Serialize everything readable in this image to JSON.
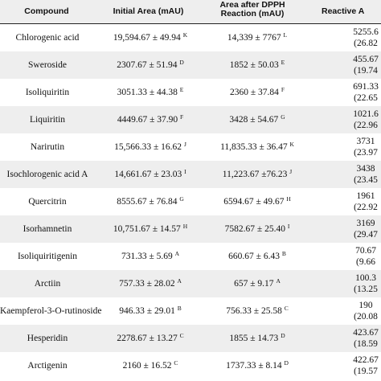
{
  "header": {
    "compound": "Compound",
    "initial": "Initial Area (mAU)",
    "after_line1": "Area after DPPH",
    "after_line2": "Reaction (mAU)",
    "reactive": "Reactive A"
  },
  "rows": [
    {
      "compound": "Chlorogenic acid",
      "initial": "19,594.67 ± 49.94",
      "initial_sup": "K",
      "after": "14,339 ± 7767",
      "after_sup": "L",
      "reactive": "5255.6",
      "reactive_pct": "(26.82"
    },
    {
      "compound": "Sweroside",
      "initial": "2307.67 ± 51.94",
      "initial_sup": "D",
      "after": "1852 ± 50.03",
      "after_sup": "E",
      "reactive": "455.67",
      "reactive_pct": "(19.74"
    },
    {
      "compound": "Isoliquiritin",
      "initial": "3051.33 ± 44.38",
      "initial_sup": "E",
      "after": "2360 ± 37.84",
      "after_sup": "F",
      "reactive": "691.33",
      "reactive_pct": "(22.65"
    },
    {
      "compound": "Liquiritin",
      "initial": "4449.67 ± 37.90",
      "initial_sup": "F",
      "after": "3428 ± 54.67",
      "after_sup": "G",
      "reactive": "1021.6",
      "reactive_pct": "(22.96"
    },
    {
      "compound": "Narirutin",
      "initial": "15,566.33 ± 16.62",
      "initial_sup": "J",
      "after": "11,835.33 ± 36.47",
      "after_sup": "K",
      "reactive": "3731",
      "reactive_pct": "(23.97"
    },
    {
      "compound": "Isochlorogenic acid A",
      "initial": "14,661.67 ± 23.03",
      "initial_sup": "I",
      "after": "11,223.67 ±76.23",
      "after_sup": "J",
      "reactive": "3438",
      "reactive_pct": "(23.45"
    },
    {
      "compound": "Quercitrin",
      "initial": "8555.67 ± 76.84",
      "initial_sup": "G",
      "after": "6594.67 ± 49.67",
      "after_sup": "H",
      "reactive": "1961",
      "reactive_pct": "(22.92"
    },
    {
      "compound": "Isorhamnetin",
      "initial": "10,751.67 ± 14.57",
      "initial_sup": "H",
      "after": "7582.67 ± 25.40",
      "after_sup": "I",
      "reactive": "3169",
      "reactive_pct": "(29.47"
    },
    {
      "compound": "Isoliquiritigenin",
      "initial": "731.33 ± 5.69",
      "initial_sup": "A",
      "after": "660.67 ± 6.43",
      "after_sup": "B",
      "reactive": "70.67",
      "reactive_pct": "(9.66"
    },
    {
      "compound": "Arctiin",
      "initial": "757.33 ± 28.02",
      "initial_sup": "A",
      "after": "657 ± 9.17",
      "after_sup": "A",
      "reactive": "100.3",
      "reactive_pct": "(13.25"
    },
    {
      "compound": "Kaempferol-3-O-rutinoside",
      "initial": "946.33 ± 29.01",
      "initial_sup": "B",
      "after": "756.33 ± 25.58",
      "after_sup": "C",
      "reactive": "190",
      "reactive_pct": "(20.08"
    },
    {
      "compound": "Hesperidin",
      "initial": "2278.67 ± 13.27",
      "initial_sup": "C",
      "after": "1855 ± 14.73",
      "after_sup": "D",
      "reactive": "423.67",
      "reactive_pct": "(18.59"
    },
    {
      "compound": "Arctigenin",
      "initial": "2160 ± 16.52",
      "initial_sup": "C",
      "after": "1737.33 ± 8.14",
      "after_sup": "D",
      "reactive": "422.67",
      "reactive_pct": "(19.57"
    }
  ]
}
